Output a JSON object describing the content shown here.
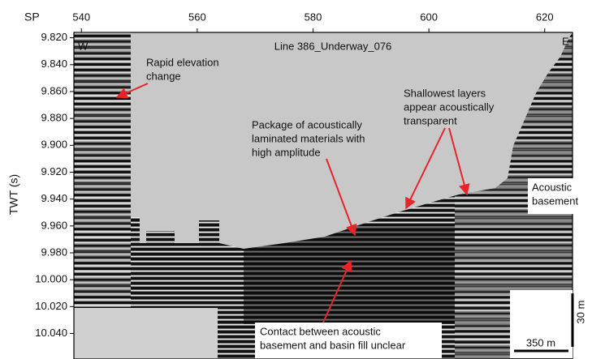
{
  "chart_data": {
    "type": "seismic",
    "title": "Line 386_Underway_076",
    "x_label": "SP",
    "y_label": "TWT (s)",
    "xlim": [
      538.7,
      624.8
    ],
    "ylim": [
      9.816,
      10.059
    ],
    "xticks": [
      540,
      560,
      580,
      600,
      620
    ],
    "yticks": [
      {
        "value": 9.82,
        "label": "9.820"
      },
      {
        "value": 9.84,
        "label": "9.840"
      },
      {
        "value": 9.86,
        "label": "9.860"
      },
      {
        "value": 9.88,
        "label": "9.880"
      },
      {
        "value": 9.9,
        "label": "9.900"
      },
      {
        "value": 9.92,
        "label": "9.920"
      },
      {
        "value": 9.94,
        "label": "9.940"
      },
      {
        "value": 9.96,
        "label": "9.960"
      },
      {
        "value": 9.98,
        "label": "9.980"
      },
      {
        "value": 10,
        "label": "10.000"
      },
      {
        "value": 10.02,
        "label": "10.020"
      },
      {
        "value": 10.04,
        "label": "10.040"
      }
    ],
    "direction_labels": [
      "W",
      "E"
    ],
    "annotations": [
      {
        "lines": [
          "Rapid elevation",
          "change"
        ]
      },
      {
        "lines": [
          "Package of acoustically",
          "laminated materials with",
          "high amplitude"
        ]
      },
      {
        "lines": [
          "Shallowest layers",
          "appear acoustically",
          "transparent"
        ]
      },
      {
        "lines": [
          "Acoustic",
          "basement"
        ]
      },
      {
        "lines": [
          "Contact between acoustic",
          "basement and basin fill unclear"
        ]
      }
    ],
    "scale_bar": {
      "horizontal": "350 m",
      "vertical": "30 m"
    }
  }
}
